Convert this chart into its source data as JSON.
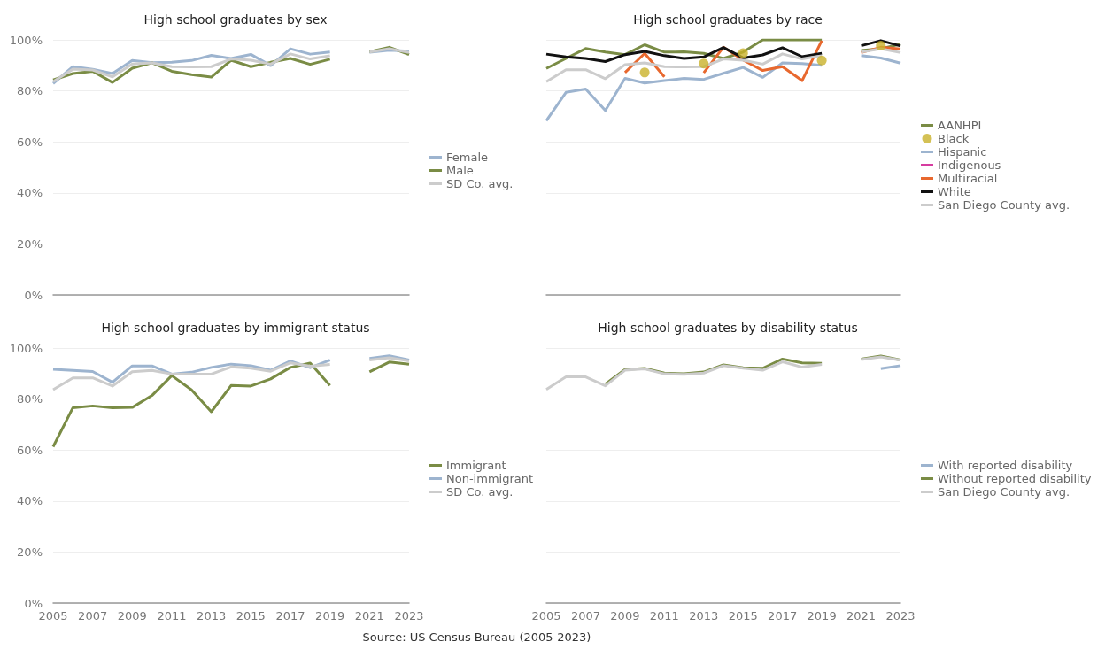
{
  "chart_data": [
    {
      "type": "line",
      "title": "High school graduates by sex",
      "xlim": [
        2005,
        2023
      ],
      "xticks": [
        2005,
        2007,
        2009,
        2011,
        2013,
        2015,
        2017,
        2019,
        2021,
        2023
      ],
      "ylim": [
        0,
        100
      ],
      "yticks": [
        {
          "value": 0,
          "label": "0%"
        },
        {
          "value": 20,
          "label": "20%"
        },
        {
          "value": 40,
          "label": "40%"
        },
        {
          "value": 60,
          "label": "60%"
        },
        {
          "value": 80,
          "label": "80%"
        },
        {
          "value": 100,
          "label": "100%"
        }
      ],
      "tick_labels": "y",
      "grid": "y",
      "legend": "right",
      "marker": "none",
      "x": [
        2005,
        2006,
        2007,
        2008,
        2009,
        2010,
        2011,
        2012,
        2013,
        2014,
        2015,
        2016,
        2017,
        2018,
        2019,
        2020,
        2021,
        2022,
        2023
      ],
      "series": [
        {
          "name": "Female",
          "color": "#9db4cf",
          "values": [
            82.9,
            89.5,
            88.5,
            86.8,
            91.9,
            91.1,
            91.2,
            91.9,
            93.9,
            92.7,
            94.3,
            89.9,
            96.5,
            94.4,
            95.2,
            null,
            95.1,
            95.9,
            95.6
          ]
        },
        {
          "name": "Male",
          "color": "#7a8c45",
          "values": [
            84.3,
            86.8,
            87.7,
            83.3,
            88.9,
            91.0,
            87.7,
            86.4,
            85.4,
            92.0,
            89.5,
            91.2,
            92.7,
            90.4,
            92.4,
            null,
            95.3,
            97.1,
            94.2
          ]
        },
        {
          "name": "SD Co. avg.",
          "color": "#cccccc",
          "values": [
            83.6,
            88.5,
            88.2,
            85.5,
            90.5,
            91.0,
            89.5,
            89.4,
            89.5,
            92.5,
            92.0,
            90.5,
            94.5,
            92.5,
            93.8,
            null,
            95.2,
            96.5,
            95.0
          ]
        }
      ]
    },
    {
      "type": "line",
      "title": "High school graduates by race",
      "xlim": [
        2005,
        2023
      ],
      "xticks": [
        2005,
        2007,
        2009,
        2011,
        2013,
        2015,
        2017,
        2019,
        2021,
        2023
      ],
      "ylim": [
        0,
        100
      ],
      "yticks": [
        0,
        20,
        40,
        60,
        80,
        100
      ],
      "tick_labels": false,
      "grid": "y",
      "legend": "right",
      "marker": "none",
      "x": [
        2005,
        2006,
        2007,
        2008,
        2009,
        2010,
        2011,
        2012,
        2013,
        2014,
        2015,
        2016,
        2017,
        2018,
        2019,
        2020,
        2021,
        2022,
        2023
      ],
      "series": [
        {
          "name": "AANHPI",
          "color": "#7a8c45",
          "values": [
            88.8,
            92.7,
            96.6,
            95.2,
            94.2,
            98.1,
            95.2,
            95.3,
            94.7,
            92.7,
            95.2,
            100,
            100,
            100,
            100,
            null,
            95.8,
            96.5,
            98.3
          ]
        },
        {
          "name": "Black",
          "type": "scatter",
          "marker": "circle",
          "color": "#c9b22a",
          "values": [
            null,
            null,
            null,
            null,
            null,
            87.2,
            null,
            null,
            90.7,
            null,
            94.8,
            null,
            null,
            null,
            91.9,
            null,
            null,
            97.7,
            null
          ]
        },
        {
          "name": "Hispanic",
          "color": "#9db4cf",
          "values": [
            68.3,
            79.4,
            80.7,
            72.3,
            84.9,
            83.1,
            84.0,
            84.9,
            84.5,
            86.9,
            89.2,
            85.3,
            91.0,
            90.7,
            90.0,
            null,
            93.8,
            92.9,
            90.9
          ]
        },
        {
          "name": "Indigenous",
          "color": "#d63ca0",
          "values": [
            null,
            null,
            null,
            null,
            null,
            null,
            null,
            null,
            null,
            null,
            null,
            null,
            null,
            null,
            null,
            null,
            null,
            null,
            null
          ]
        },
        {
          "name": "Multiracial",
          "color": "#e8682e",
          "values": [
            null,
            null,
            null,
            null,
            87.2,
            94.7,
            85.5,
            null,
            87.1,
            97.1,
            92.1,
            88.0,
            89.5,
            84.0,
            99.7,
            null,
            95.0,
            97.1,
            96.4
          ]
        },
        {
          "name": "White",
          "color": "#111111",
          "values": [
            94.4,
            93.3,
            92.7,
            91.5,
            94.2,
            95.5,
            93.8,
            92.7,
            93.3,
            97.0,
            92.9,
            94.1,
            96.9,
            93.4,
            94.7,
            null,
            97.7,
            99.7,
            97.6
          ]
        },
        {
          "name": "San Diego County avg.",
          "color": "#cccccc",
          "values": [
            83.6,
            88.3,
            88.3,
            84.8,
            90.3,
            91.0,
            89.5,
            89.4,
            89.5,
            92.5,
            92.0,
            90.5,
            94.5,
            92.5,
            93.8,
            null,
            95.2,
            96.5,
            95.0
          ]
        }
      ]
    },
    {
      "type": "line",
      "title": "High school graduates by immigrant status",
      "xlim": [
        2005,
        2023
      ],
      "xticks": [
        2005,
        2007,
        2009,
        2011,
        2013,
        2015,
        2017,
        2019,
        2021,
        2023
      ],
      "ylim": [
        0,
        100
      ],
      "yticks": [
        {
          "value": 0,
          "label": "0%"
        },
        {
          "value": 20,
          "label": "20%"
        },
        {
          "value": 40,
          "label": "40%"
        },
        {
          "value": 60,
          "label": "60%"
        },
        {
          "value": 80,
          "label": "80%"
        },
        {
          "value": 100,
          "label": "100%"
        }
      ],
      "grid": "y",
      "legend": "right",
      "marker": "none",
      "x": [
        2005,
        2006,
        2007,
        2008,
        2009,
        2010,
        2011,
        2012,
        2013,
        2014,
        2015,
        2016,
        2017,
        2018,
        2019,
        2020,
        2021,
        2022,
        2023
      ],
      "series": [
        {
          "name": "Immigrant",
          "color": "#7a8c45",
          "values": [
            61.3,
            76.6,
            77.3,
            76.6,
            76.7,
            81.4,
            89.2,
            83.6,
            75.0,
            85.3,
            85.1,
            87.9,
            92.4,
            94.1,
            85.3,
            null,
            90.7,
            94.5,
            93.7
          ]
        },
        {
          "name": "Non-immigrant",
          "color": "#9db4cf",
          "values": [
            91.7,
            91.2,
            90.8,
            86.6,
            93.0,
            93.0,
            89.8,
            90.5,
            92.4,
            93.7,
            93.1,
            91.3,
            94.9,
            92.3,
            95.3,
            null,
            95.9,
            97.0,
            95.3
          ]
        },
        {
          "name": "SD Co. avg.",
          "color": "#cccccc",
          "values": [
            83.7,
            88.3,
            88.3,
            85.1,
            90.7,
            91.2,
            89.8,
            89.8,
            89.8,
            92.6,
            92.1,
            90.9,
            94.2,
            92.9,
            93.6,
            null,
            95.3,
            96.2,
            95.0
          ]
        }
      ]
    },
    {
      "type": "line",
      "title": "High school graduates by disability status",
      "xlim": [
        2005,
        2023
      ],
      "xticks": [
        2005,
        2007,
        2009,
        2011,
        2013,
        2015,
        2017,
        2019,
        2021,
        2023
      ],
      "ylim": [
        0,
        100
      ],
      "yticks": [
        0,
        20,
        40,
        60,
        80,
        100
      ],
      "tick_labels": "x",
      "grid": "y",
      "legend": "right",
      "marker": "none",
      "x": [
        2005,
        2006,
        2007,
        2008,
        2009,
        2010,
        2011,
        2012,
        2013,
        2014,
        2015,
        2016,
        2017,
        2018,
        2019,
        2020,
        2021,
        2022,
        2023
      ],
      "series": [
        {
          "name": "With reported disability",
          "color": "#9db4cf",
          "values": [
            null,
            null,
            null,
            null,
            null,
            null,
            null,
            null,
            null,
            null,
            null,
            null,
            null,
            null,
            null,
            null,
            null,
            91.9,
            93.1
          ]
        },
        {
          "name": "Without reported disability",
          "color": "#7a8c45",
          "values": [
            null,
            null,
            null,
            85.9,
            91.6,
            92.0,
            90.2,
            89.9,
            90.6,
            93.4,
            92.3,
            92.1,
            95.7,
            94.2,
            94.0,
            null,
            95.7,
            96.9,
            95.3
          ]
        },
        {
          "name": "San Diego County avg.",
          "color": "#cccccc",
          "values": [
            83.8,
            88.7,
            88.7,
            85.2,
            91.3,
            91.8,
            89.9,
            89.7,
            90.2,
            93.1,
            92.1,
            91.3,
            94.6,
            92.5,
            93.6,
            null,
            95.5,
            96.5,
            95.2
          ]
        }
      ],
      "annotations": [
        "Source: US Census Bureau (2005-2023)"
      ]
    }
  ]
}
